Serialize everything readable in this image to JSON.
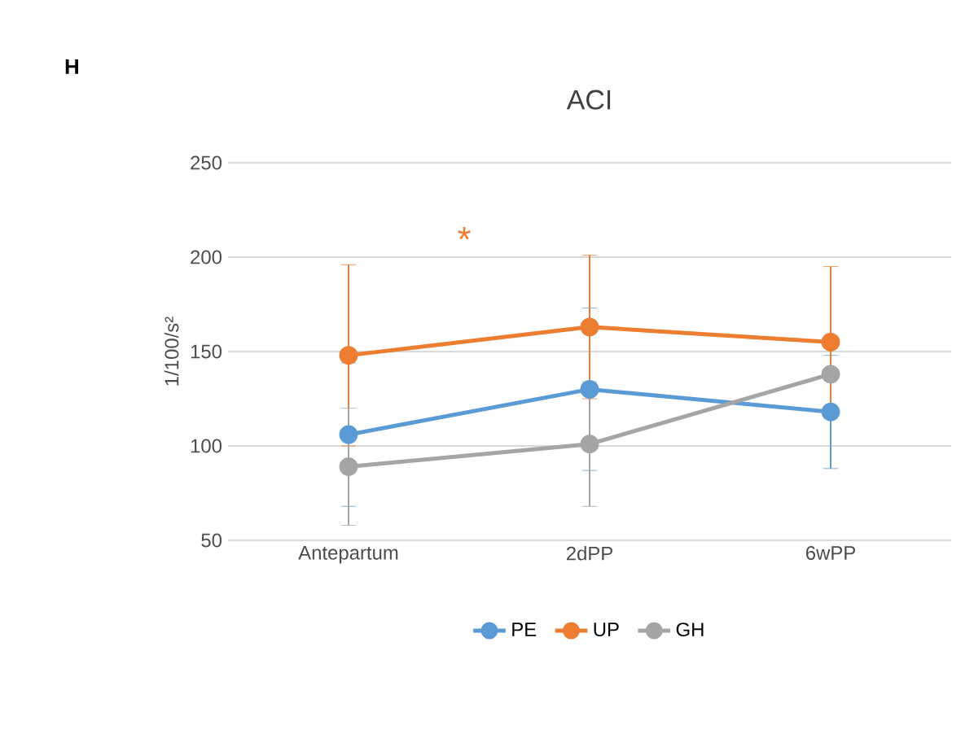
{
  "chart_data": {
    "type": "line",
    "title": "ACI",
    "ylabel": "1/100/s²",
    "categories": [
      "Antepartum",
      "2dPP",
      "6wPP"
    ],
    "series": [
      {
        "name": "PE",
        "color": "#5b9bd5",
        "values": [
          106,
          130,
          118
        ],
        "errors": [
          38,
          43,
          30
        ]
      },
      {
        "name": "UP",
        "color": "#ed7d31",
        "values": [
          148,
          163,
          155
        ],
        "errors": [
          48,
          38,
          40
        ]
      },
      {
        "name": "GH",
        "color": "#a5a5a5",
        "values": [
          89,
          101,
          138
        ],
        "errors": [
          31,
          33,
          null
        ]
      }
    ],
    "ylim": [
      50,
      250
    ],
    "yticks": [
      50,
      100,
      150,
      200,
      250
    ],
    "grid": "y",
    "legend": "bottom",
    "marker": "circle",
    "line_style": "solid",
    "annotations": [
      "H",
      "*"
    ]
  }
}
